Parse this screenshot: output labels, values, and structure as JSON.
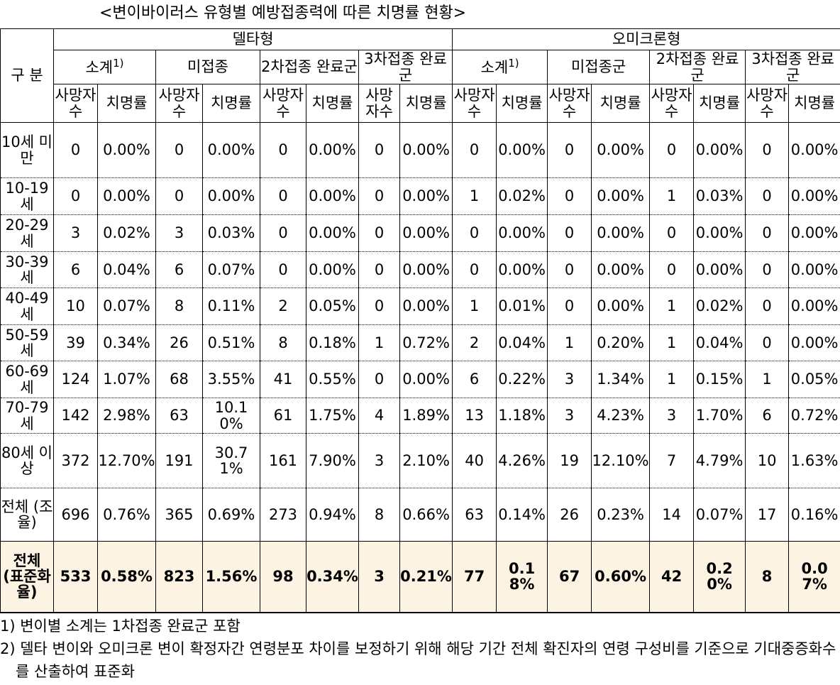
{
  "title": "<변이바이러스 유형별 예방접종력에 따른 치명률 현황>",
  "table": {
    "corner": "구 분",
    "variants": [
      {
        "name": "델타형",
        "groups": [
          "소계",
          "미접종",
          "2차접종 완료군",
          "3차접종 완료군"
        ]
      },
      {
        "name": "오미크론형",
        "groups": [
          "소계",
          "미접종군",
          "2차접종 완료군",
          "3차접종 완료군"
        ]
      }
    ],
    "subtotal_note": "1)",
    "subheaders": [
      "사망자수",
      "치명률"
    ],
    "rows": [
      {
        "label": "10세 미만",
        "cells": [
          "0",
          "0.00%",
          "0",
          "0.00%",
          "0",
          "0.00%",
          "0",
          "0.00%",
          "0",
          "0.00%",
          "0",
          "0.00%",
          "0",
          "0.00%",
          "0",
          "0.00%"
        ]
      },
      {
        "label": "10-19세",
        "cells": [
          "0",
          "0.00%",
          "0",
          "0.00%",
          "0",
          "0.00%",
          "0",
          "0.00%",
          "1",
          "0.02%",
          "0",
          "0.00%",
          "1",
          "0.03%",
          "0",
          "0.00%"
        ]
      },
      {
        "label": "20-29세",
        "cells": [
          "3",
          "0.02%",
          "3",
          "0.03%",
          "0",
          "0.00%",
          "0",
          "0.00%",
          "0",
          "0.00%",
          "0",
          "0.00%",
          "0",
          "0.00%",
          "0",
          "0.00%"
        ]
      },
      {
        "label": "30-39세",
        "cells": [
          "6",
          "0.04%",
          "6",
          "0.07%",
          "0",
          "0.00%",
          "0",
          "0.00%",
          "0",
          "0.00%",
          "0",
          "0.00%",
          "0",
          "0.00%",
          "0",
          "0.00%"
        ]
      },
      {
        "label": "40-49세",
        "cells": [
          "10",
          "0.07%",
          "8",
          "0.11%",
          "2",
          "0.05%",
          "0",
          "0.00%",
          "1",
          "0.01%",
          "0",
          "0.00%",
          "1",
          "0.02%",
          "0",
          "0.00%"
        ]
      },
      {
        "label": "50-59세",
        "cells": [
          "39",
          "0.34%",
          "26",
          "0.51%",
          "8",
          "0.18%",
          "1",
          "0.72%",
          "2",
          "0.04%",
          "1",
          "0.20%",
          "1",
          "0.04%",
          "0",
          "0.00%"
        ]
      },
      {
        "label": "60-69세",
        "cells": [
          "124",
          "1.07%",
          "68",
          "3.55%",
          "41",
          "0.55%",
          "0",
          "0.00%",
          "6",
          "0.22%",
          "3",
          "1.34%",
          "1",
          "0.15%",
          "1",
          "0.05%"
        ]
      },
      {
        "label": "70-79세",
        "cells": [
          "142",
          "2.98%",
          "63",
          "10.10%",
          "61",
          "1.75%",
          "4",
          "1.89%",
          "13",
          "1.18%",
          "3",
          "4.23%",
          "3",
          "1.70%",
          "6",
          "0.72%"
        ]
      },
      {
        "label": "80세 이상",
        "cells": [
          "372",
          "12.70%",
          "191",
          "30.71%",
          "161",
          "7.90%",
          "3",
          "2.10%",
          "40",
          "4.26%",
          "19",
          "12.10%",
          "7",
          "4.79%",
          "10",
          "1.63%"
        ]
      },
      {
        "label": "전체 (조율)",
        "cells": [
          "696",
          "0.76%",
          "365",
          "0.69%",
          "273",
          "0.94%",
          "8",
          "0.66%",
          "63",
          "0.14%",
          "26",
          "0.23%",
          "14",
          "0.07%",
          "17",
          "0.16%"
        ]
      },
      {
        "label": "전체 (표준화율)",
        "cells": [
          "533",
          "0.58%",
          "823",
          "1.56%",
          "98",
          "0.34%",
          "3",
          "0.21%",
          "77",
          "0.18%",
          "67",
          "0.60%",
          "42",
          "0.20%",
          "8",
          "0.07%"
        ]
      }
    ]
  },
  "footnotes": [
    "1) 변이별 소계는 1차접종 완료군 포함",
    "2) 델타 변이와 오미크론 변이 확정자간 연령분포 차이를 보정하기 위해 해당 기간 전체 확진자의 연령 구성비를 기준으로 기대중증화수를 산출하여 표준화"
  ]
}
